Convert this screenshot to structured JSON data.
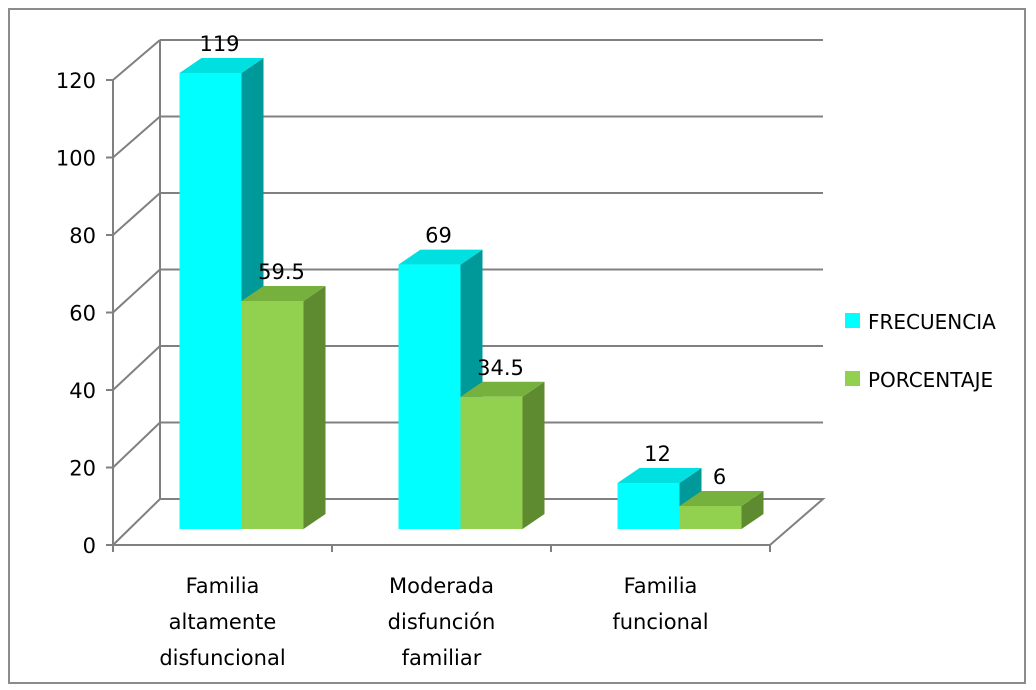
{
  "chart_data": {
    "type": "bar",
    "style": "3d-clustered-column",
    "categories": [
      [
        "Familia",
        "altamente",
        "disfuncional"
      ],
      [
        "Moderada",
        "disfunción",
        "familiar"
      ],
      [
        "Familia",
        "funcional"
      ]
    ],
    "series": [
      {
        "name": "FRECUENCIA",
        "values": [
          119,
          69,
          12
        ],
        "labels": [
          "119",
          "69",
          "12"
        ],
        "color": "#00ffff",
        "side_color": "#009999",
        "top_color": "#00e0e0"
      },
      {
        "name": "PORCENTAJE",
        "values": [
          59.5,
          34.5,
          6
        ],
        "labels": [
          "59.5",
          "34.5",
          "6"
        ],
        "color": "#92d050",
        "side_color": "#5e8a30",
        "top_color": "#77b13d"
      }
    ],
    "y_ticks": [
      "0",
      "20",
      "40",
      "60",
      "80",
      "100",
      "120"
    ],
    "ylim": [
      0,
      120
    ],
    "grid": true,
    "legend_position": "right"
  }
}
